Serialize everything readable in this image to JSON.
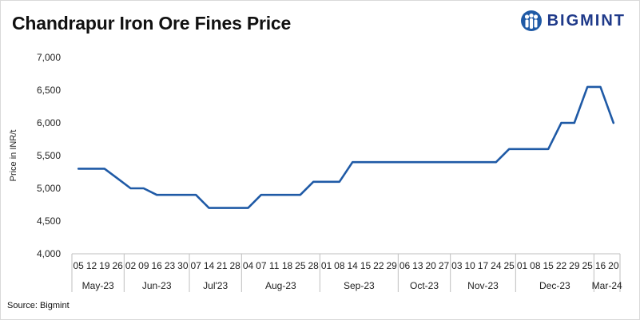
{
  "title": "Chandrapur Iron Ore Fines Price",
  "brand": "BIGMINT",
  "source": "Source: Bigmint",
  "colors": {
    "line": "#1f5aa6",
    "brand": "#1f3a8a"
  },
  "chart_data": {
    "type": "line",
    "title": "Chandrapur Iron Ore Fines Price",
    "ylabel": "Price in INR/t",
    "ylim": [
      4000,
      7000
    ],
    "yticks": [
      4000,
      4500,
      5000,
      5500,
      6000,
      6500,
      7000
    ],
    "ytick_labels": [
      "4,000",
      "4,500",
      "5,000",
      "5,500",
      "6,000",
      "6,500",
      "7,000"
    ],
    "categories": [
      "05",
      "12",
      "19",
      "26",
      "02",
      "09",
      "16",
      "23",
      "30",
      "07",
      "14",
      "21",
      "28",
      "04",
      "07",
      "11",
      "18",
      "25",
      "28",
      "01",
      "08",
      "14",
      "15",
      "22",
      "29",
      "06",
      "13",
      "20",
      "27",
      "03",
      "10",
      "17",
      "24",
      "25",
      "01",
      "08",
      "15",
      "22",
      "29",
      "25",
      "16",
      "20"
    ],
    "values": [
      5300,
      5300,
      5300,
      5150,
      5000,
      5000,
      4900,
      4900,
      4900,
      4900,
      4700,
      4700,
      4700,
      4700,
      4900,
      4900,
      4900,
      4900,
      5100,
      5100,
      5100,
      5400,
      5400,
      5400,
      5400,
      5400,
      5400,
      5400,
      5400,
      5400,
      5400,
      5400,
      5400,
      5600,
      5600,
      5600,
      5600,
      6000,
      6000,
      6550,
      6550,
      6000
    ],
    "months": [
      {
        "label": "May-23",
        "start": 0,
        "end": 4
      },
      {
        "label": "Jun-23",
        "start": 4,
        "end": 9
      },
      {
        "label": "Jul'23",
        "start": 9,
        "end": 13
      },
      {
        "label": "Aug-23",
        "start": 13,
        "end": 19
      },
      {
        "label": "Sep-23",
        "start": 19,
        "end": 25
      },
      {
        "label": "Oct-23",
        "start": 25,
        "end": 29
      },
      {
        "label": "Nov-23",
        "start": 29,
        "end": 34
      },
      {
        "label": "Dec-23",
        "start": 34,
        "end": 40
      },
      {
        "label": "Mar-24",
        "start": 40,
        "end": 42
      }
    ],
    "grid": false,
    "legend": "none"
  }
}
